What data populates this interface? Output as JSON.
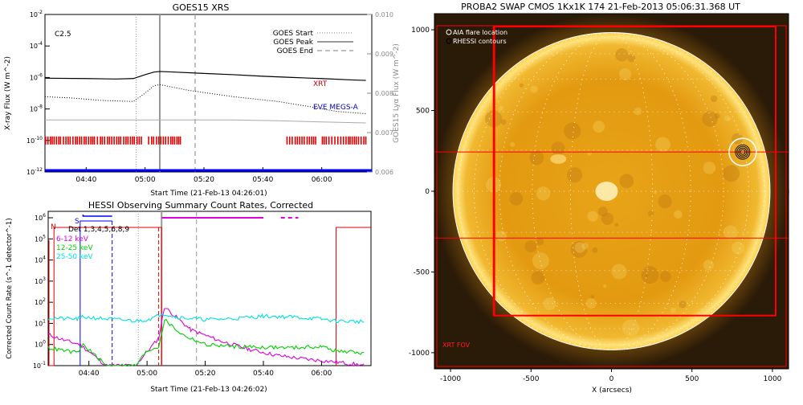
{
  "chart_data": [
    {
      "type": "line",
      "title": "GOES15 XRS",
      "xlabel": "Start Time (21-Feb-13 04:26:01)",
      "ylabel": "X-ray Flux (W m^-2)",
      "ylabel_right": "GOES15 Lyα Flux (W m^-2)",
      "flare_class": "C2.5",
      "x_ticks": [
        "04:40",
        "05:00",
        "05:20",
        "05:40",
        "06:00"
      ],
      "y_ticks": [
        "10^-2",
        "10^-4",
        "10^-6",
        "10^-8",
        "10^-10",
        "10^-12"
      ],
      "y_right_ticks": [
        "0.010",
        "0.009",
        "0.008",
        "0.007",
        "0.006"
      ],
      "ylim": [
        1e-12,
        0.01
      ],
      "ylim_right": [
        0.006,
        0.01
      ],
      "legend": {
        "placement": "top-right",
        "entries": [
          {
            "label": "GOES Start",
            "style": "dotted"
          },
          {
            "label": "GOES Peak",
            "style": "solid"
          },
          {
            "label": "GOES End",
            "style": "dashed"
          }
        ]
      },
      "annotations": [
        {
          "text": "XRT",
          "color": "#d00000"
        },
        {
          "text": "EVE MEGS-A",
          "color": "#0000c0"
        }
      ],
      "vlines": {
        "start": "04:57",
        "peak": "05:05",
        "end": "05:17"
      },
      "series": [
        {
          "name": "",
          "x": [
            "04:26",
            "04:40",
            "04:50",
            "04:56",
            "05:00",
            "05:03",
            "05:05",
            "05:10",
            "05:20",
            "05:30",
            "05:40",
            "05:50",
            "06:00",
            "06:10",
            "06:15"
          ],
          "values": [
            9e-07,
            8.5e-07,
            8e-07,
            8.5e-07,
            1.5e-06,
            2.2e-06,
            2.4e-06,
            2.2e-06,
            1.8e-06,
            1.5e-06,
            1.2e-06,
            1e-06,
            8.5e-07,
            7e-07,
            6.5e-07
          ]
        },
        {
          "name": "",
          "x": [
            "04:26",
            "04:35",
            "04:45",
            "04:56",
            "05:00",
            "05:03",
            "05:05",
            "05:15",
            "05:30",
            "05:45",
            "05:55",
            "06:05",
            "06:15"
          ],
          "values": [
            6e-08,
            5e-08,
            3.5e-08,
            3e-08,
            1e-07,
            3e-07,
            3.5e-07,
            1.5e-07,
            6e-08,
            3e-08,
            1.5e-08,
            7e-09,
            5e-09
          ]
        },
        {
          "name": "",
          "x": [
            "04:26",
            "05:00",
            "05:30",
            "05:45",
            "06:00",
            "06:15"
          ],
          "values": [
            2e-09,
            2e-09,
            2e-09,
            1.8e-09,
            1.5e-09,
            1.3e-09
          ]
        }
      ],
      "colors": {
        "xrt": "#d00000",
        "eve": "#0000c0"
      }
    },
    {
      "type": "line",
      "title": "HESSI Observing Summary Count Rates, Corrected",
      "xlabel": "Start Time (21-Feb-13 04:26:02)",
      "ylabel": "Corrected Count Rate (s^-1 detector^-1)",
      "x_ticks": [
        "04:40",
        "05:00",
        "05:20",
        "05:40",
        "06:00"
      ],
      "y_ticks": [
        "10^6",
        "10^5",
        "10^4",
        "10^3",
        "10^2",
        "10^1",
        "10^0",
        "10^-1"
      ],
      "ylim": [
        0.1,
        1000000.0
      ],
      "flags": [
        "N",
        "S"
      ],
      "detectors": "Det 1,3,4,5,6,8,9",
      "vlines": {
        "start": "04:57",
        "peak": "05:05",
        "end": "05:17"
      },
      "series": [
        {
          "name": "6-12 keV",
          "color": "#e000e0",
          "x": [
            "04:26",
            "04:32",
            "04:37",
            "04:46",
            "04:56",
            "05:04",
            "05:06",
            "05:10",
            "05:15",
            "05:25",
            "05:35",
            "05:45",
            "05:55",
            "06:05",
            "06:15"
          ],
          "values": [
            3,
            1.5,
            1,
            0.1,
            0.1,
            2,
            60,
            20,
            5,
            1.5,
            0.6,
            0.3,
            0.2,
            0.15,
            0.1
          ]
        },
        {
          "name": "12-25 keV",
          "color": "#00d000",
          "x": [
            "04:26",
            "04:36",
            "04:38",
            "04:46",
            "04:56",
            "05:00",
            "05:04",
            "05:06",
            "05:12",
            "05:20",
            "05:30",
            "05:40",
            "05:50",
            "06:00",
            "06:05",
            "06:15"
          ],
          "values": [
            0.7,
            0.4,
            1,
            0.1,
            0.1,
            0.5,
            0.8,
            15,
            3,
            1,
            0.8,
            0.75,
            0.7,
            0.8,
            0.5,
            0.4
          ]
        },
        {
          "name": "25-50 keV",
          "color": "#00e0e0",
          "x": [
            "04:26",
            "04:36",
            "04:38",
            "04:47",
            "04:56",
            "05:00",
            "05:03",
            "05:05",
            "05:10",
            "05:20",
            "05:30",
            "05:40",
            "05:50",
            "06:00",
            "06:05",
            "06:15"
          ],
          "values": [
            18,
            16,
            20,
            16,
            13,
            15,
            20,
            30,
            20,
            15,
            17,
            22,
            20,
            16,
            13,
            12
          ]
        }
      ]
    },
    {
      "type": "heatmap",
      "title": "PROBA2 SWAP CMOS 1Kx1K 174 21-Feb-2013 05:06:31.368 UT",
      "xlabel": "X (arcsecs)",
      "ylabel": "",
      "x_ticks": [
        "-1000",
        "-500",
        "0",
        "500",
        "1000"
      ],
      "y_ticks": [
        "1000",
        "500",
        "0",
        "-500",
        "-1000"
      ],
      "xlim": [
        -1100,
        1100
      ],
      "ylim": [
        -1100,
        1100
      ],
      "legend_entries": [
        "AIA flare location",
        "RHESSI contours"
      ],
      "fov_label": "XRT FOV",
      "solar_radius": 985,
      "flare_location": [
        815,
        243
      ],
      "xrt_fov": {
        "x": [
          -730,
          1020
        ],
        "y": [
          -770,
          1020
        ]
      },
      "lines": {
        "y1": 243,
        "y2": -290
      },
      "colors": {
        "disk": "#e8a010",
        "fov": "#ff0000",
        "background": "#2a1a08"
      }
    }
  ]
}
